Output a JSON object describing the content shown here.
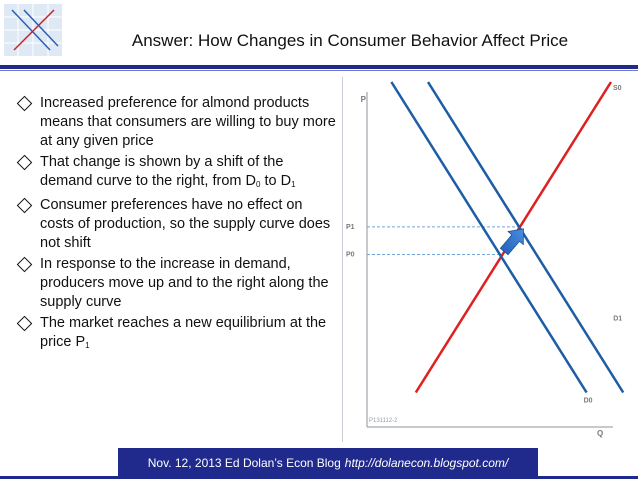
{
  "slide": {
    "title": "Answer: How Changes in Consumer Behavior Affect Price",
    "bullets": [
      {
        "text": "Increased preference for almond products means that consumers are willing to buy more at any given price"
      },
      {
        "pre": "That change is shown by a shift of the demand curve to the right, from D",
        "sub1": "0",
        "mid": " to D",
        "sub2": "1"
      },
      {
        "text": "Consumer preferences have no effect on costs of production, so the supply curve does not shift"
      },
      {
        "text": "In response to the increase in demand, producers move up and to the right along the supply curve"
      },
      {
        "pre": "The market reaches a new equilibrium at the price P",
        "sub1": "1"
      }
    ],
    "footer": {
      "text": "Nov. 12, 2013 Ed Dolan’s Econ Blog",
      "url": "http://dolanecon.blogspot.com/"
    }
  },
  "chart_data": {
    "type": "line",
    "xlabel": "Q",
    "ylabel": "P",
    "labels": {
      "p1": "P1",
      "p0": "P0",
      "s0": "S0",
      "d0": "D0",
      "d1": "D1",
      "code": "P131112-2"
    },
    "series": [
      {
        "name": "S0",
        "points": [
          [
            2,
            1
          ],
          [
            10,
            10
          ]
        ]
      },
      {
        "name": "D0",
        "points": [
          [
            1,
            10
          ],
          [
            9,
            1
          ]
        ]
      },
      {
        "name": "D1",
        "points": [
          [
            2.5,
            10
          ],
          [
            10.5,
            1
          ]
        ]
      }
    ],
    "equilibria": {
      "before": {
        "q": 5.5,
        "p": 5
      },
      "after": {
        "q": 6.25,
        "p": 5.8
      }
    },
    "colors": {
      "supply": "#e02020",
      "demand": "#1c5da6",
      "arrow": "#2f73c8",
      "guide": "#6fa8dc",
      "axis": "#8d939c",
      "label": "#7a7a7a"
    }
  }
}
